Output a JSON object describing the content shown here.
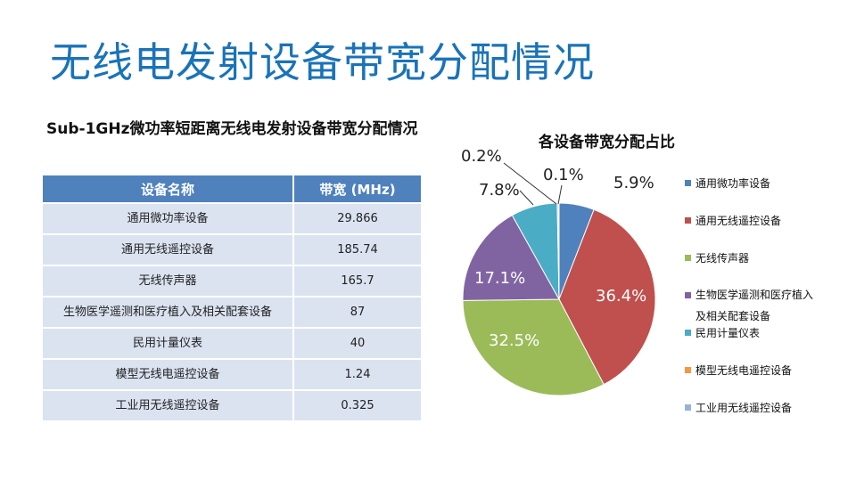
{
  "slide": {
    "title": "无线电发射设备带宽分配情况"
  },
  "table": {
    "title": "Sub-1GHz微功率短距离无线电发射设备带宽分配情况",
    "headers": [
      "设备名称",
      "带宽 (MHz)"
    ],
    "rows": [
      {
        "name": "通用微功率设备",
        "bandwidth": "29.866"
      },
      {
        "name": "通用无线遥控设备",
        "bandwidth": "185.74"
      },
      {
        "name": "无线传声器",
        "bandwidth": "165.7"
      },
      {
        "name": "生物医学遥测和医疗植入及相关配套设备",
        "bandwidth": "87"
      },
      {
        "name": "民用计量仪表",
        "bandwidth": "40"
      },
      {
        "name": "模型无线电遥控设备",
        "bandwidth": "1.24"
      },
      {
        "name": "工业用无线遥控设备",
        "bandwidth": "0.325"
      }
    ]
  },
  "chart_data": {
    "type": "pie",
    "title": "各设备带宽分配占比",
    "categories": [
      "通用微功率设备",
      "通用无线遥控设备",
      "无线传声器",
      "生物医学遥测和医疗植入及相关配套设备",
      "民用计量仪表",
      "模型无线电遥控设备",
      "工业用无线遥控设备"
    ],
    "values": [
      5.9,
      36.4,
      32.5,
      17.1,
      7.8,
      0.2,
      0.1
    ],
    "labels": [
      "5.9%",
      "36.4%",
      "32.5%",
      "17.1%",
      "7.8%",
      "0.2%",
      "0.1%"
    ],
    "colors": [
      "#4f81bd",
      "#c0504d",
      "#9bbb59",
      "#8064a2",
      "#4bacc6",
      "#f79646",
      "#95b3d7"
    ],
    "legend_position": "right"
  }
}
